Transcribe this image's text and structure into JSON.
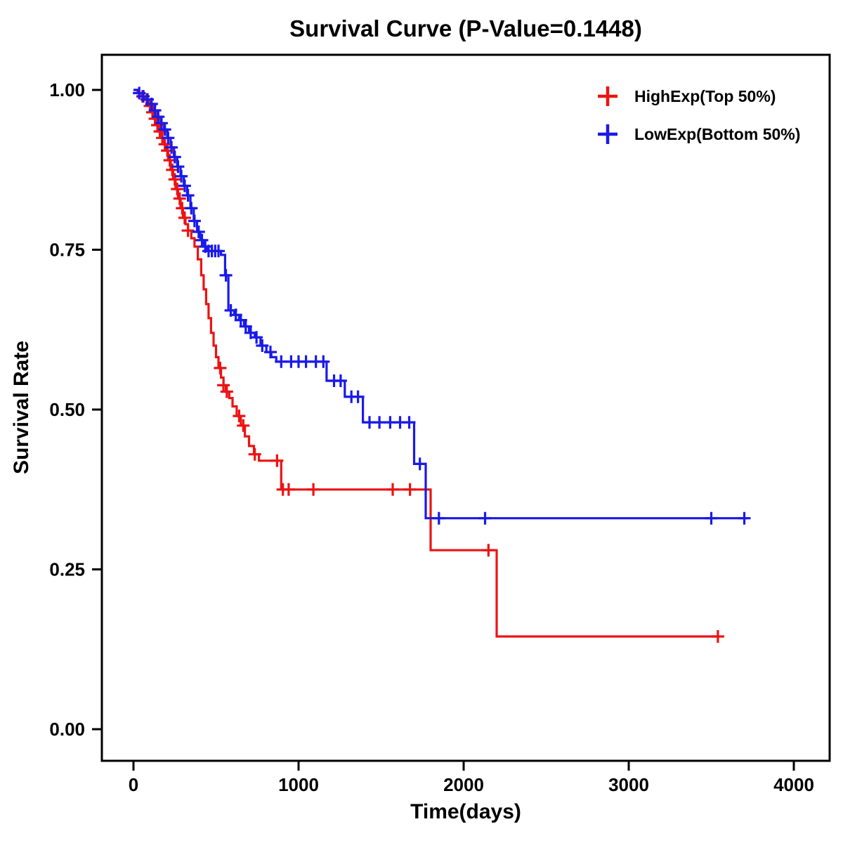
{
  "title": "Survival Curve (P-Value=0.1448)",
  "chart_data": {
    "type": "line",
    "subtype": "kaplan-meier-step-curve",
    "title": "Survival Curve (P-Value=0.1448)",
    "xlabel": "Time(days)",
    "ylabel": "Survival Rate",
    "xlim": [
      0,
      4000
    ],
    "ylim": [
      0.0,
      1.0
    ],
    "grid": false,
    "legend_position": "top-right-inside",
    "p_value": "0.1448",
    "xticks": [
      {
        "value": 0,
        "label": "0"
      },
      {
        "value": 1000,
        "label": "1000"
      },
      {
        "value": 2000,
        "label": "2000"
      },
      {
        "value": 3000,
        "label": "3000"
      },
      {
        "value": 4000,
        "label": "4000"
      }
    ],
    "yticks": [
      {
        "value": 1.0,
        "label": "1.00"
      },
      {
        "value": 0.75,
        "label": "0.75"
      },
      {
        "value": 0.5,
        "label": "0.50"
      },
      {
        "value": 0.25,
        "label": "0.25"
      },
      {
        "value": 0.0,
        "label": "0.00"
      }
    ],
    "series": [
      {
        "name": "HighExp(Top 50%)",
        "color": "#EC1313",
        "steps": [
          [
            0,
            1.0
          ],
          [
            25,
            0.995
          ],
          [
            50,
            0.99
          ],
          [
            70,
            0.985
          ],
          [
            90,
            0.975
          ],
          [
            105,
            0.965
          ],
          [
            120,
            0.955
          ],
          [
            135,
            0.945
          ],
          [
            150,
            0.935
          ],
          [
            165,
            0.925
          ],
          [
            180,
            0.915
          ],
          [
            195,
            0.905
          ],
          [
            210,
            0.89
          ],
          [
            225,
            0.875
          ],
          [
            240,
            0.86
          ],
          [
            255,
            0.845
          ],
          [
            270,
            0.83
          ],
          [
            285,
            0.815
          ],
          [
            300,
            0.8
          ],
          [
            315,
            0.79
          ],
          [
            330,
            0.78
          ],
          [
            350,
            0.768
          ],
          [
            370,
            0.755
          ],
          [
            390,
            0.735
          ],
          [
            410,
            0.71
          ],
          [
            425,
            0.688
          ],
          [
            440,
            0.665
          ],
          [
            455,
            0.643
          ],
          [
            470,
            0.62
          ],
          [
            485,
            0.6
          ],
          [
            500,
            0.582
          ],
          [
            515,
            0.565
          ],
          [
            530,
            0.55
          ],
          [
            545,
            0.538
          ],
          [
            560,
            0.528
          ],
          [
            580,
            0.518
          ],
          [
            600,
            0.505
          ],
          [
            625,
            0.49
          ],
          [
            650,
            0.475
          ],
          [
            675,
            0.458
          ],
          [
            700,
            0.443
          ],
          [
            730,
            0.43
          ],
          [
            760,
            0.42
          ],
          [
            895,
            0.375
          ],
          [
            1800,
            0.28
          ],
          [
            2200,
            0.145
          ],
          [
            3550,
            0.145
          ]
        ],
        "censor_times": [
          55,
          80,
          100,
          115,
          130,
          145,
          160,
          175,
          190,
          205,
          220,
          235,
          250,
          265,
          280,
          295,
          310,
          330,
          525,
          545,
          565,
          640,
          665,
          735,
          870,
          905,
          940,
          1090,
          1570,
          1675,
          2150,
          3540
        ]
      },
      {
        "name": "LowExp(Bottom 50%)",
        "color": "#1A1AE8",
        "steps": [
          [
            0,
            1.0
          ],
          [
            30,
            0.995
          ],
          [
            55,
            0.99
          ],
          [
            80,
            0.985
          ],
          [
            105,
            0.978
          ],
          [
            125,
            0.968
          ],
          [
            145,
            0.958
          ],
          [
            165,
            0.948
          ],
          [
            185,
            0.938
          ],
          [
            205,
            0.925
          ],
          [
            225,
            0.91
          ],
          [
            245,
            0.895
          ],
          [
            265,
            0.88
          ],
          [
            285,
            0.865
          ],
          [
            305,
            0.85
          ],
          [
            325,
            0.835
          ],
          [
            345,
            0.815
          ],
          [
            365,
            0.795
          ],
          [
            385,
            0.778
          ],
          [
            405,
            0.765
          ],
          [
            425,
            0.755
          ],
          [
            445,
            0.748
          ],
          [
            530,
            0.742
          ],
          [
            555,
            0.71
          ],
          [
            575,
            0.655
          ],
          [
            610,
            0.648
          ],
          [
            640,
            0.64
          ],
          [
            670,
            0.63
          ],
          [
            700,
            0.62
          ],
          [
            735,
            0.613
          ],
          [
            770,
            0.6
          ],
          [
            805,
            0.59
          ],
          [
            835,
            0.582
          ],
          [
            865,
            0.575
          ],
          [
            1170,
            0.545
          ],
          [
            1280,
            0.52
          ],
          [
            1390,
            0.48
          ],
          [
            1700,
            0.415
          ],
          [
            1770,
            0.33
          ],
          [
            3720,
            0.33
          ]
        ],
        "censor_times": [
          35,
          60,
          85,
          110,
          130,
          150,
          170,
          190,
          210,
          230,
          250,
          270,
          290,
          310,
          330,
          350,
          370,
          395,
          415,
          435,
          455,
          475,
          495,
          515,
          560,
          590,
          620,
          650,
          680,
          710,
          745,
          780,
          830,
          895,
          955,
          1000,
          1045,
          1105,
          1150,
          1215,
          1255,
          1320,
          1360,
          1430,
          1490,
          1555,
          1615,
          1670,
          1735,
          1850,
          2130,
          3500,
          3700
        ]
      }
    ]
  }
}
